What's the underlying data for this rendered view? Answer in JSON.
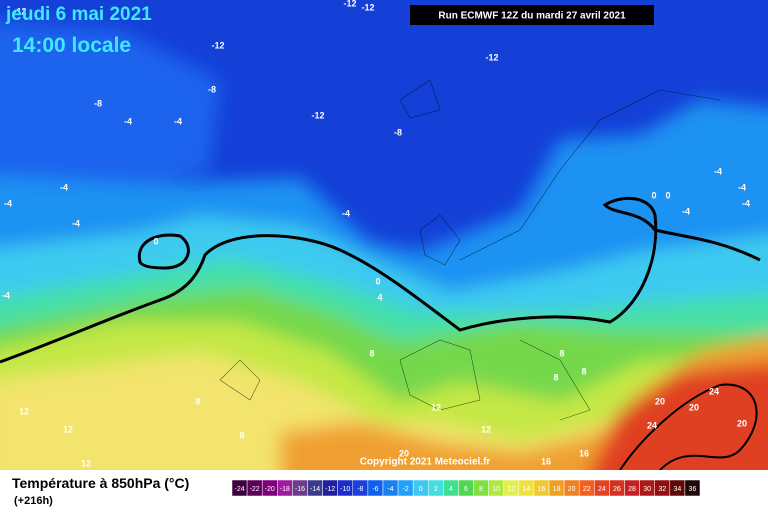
{
  "header": {
    "date": "jeudi 6 mai 2021",
    "time": "14:00 locale",
    "run": "Run ECMWF 12Z du mardi 27 avril 2021"
  },
  "footer": {
    "copyright": "Copyright 2021 Meteociel.fr",
    "title": "Température à 850hPa (°C)",
    "lead": "(+216h)"
  },
  "legend": {
    "ticks": [
      -24,
      -22,
      -20,
      -18,
      -16,
      -14,
      -12,
      -10,
      -8,
      -6,
      -4,
      -2,
      0,
      2,
      4,
      6,
      8,
      10,
      12,
      14,
      16,
      18,
      20,
      22,
      24,
      26,
      28,
      30,
      32,
      34,
      36
    ],
    "colors": [
      "#3c003c",
      "#5c005c",
      "#7c007c",
      "#9c1c9c",
      "#6c3c8c",
      "#3c3c8c",
      "#2020a0",
      "#1c2cc8",
      "#1a40e0",
      "#1060f0",
      "#1a80f0",
      "#20a0f8",
      "#40c8f0",
      "#40e0e0",
      "#40e090",
      "#50d850",
      "#80e040",
      "#b0e840",
      "#e0f050",
      "#f0e040",
      "#f0c830",
      "#f0a020",
      "#f08020",
      "#f06020",
      "#e84020",
      "#d83020",
      "#c82020",
      "#b01818",
      "#901010",
      "#600808",
      "#200808"
    ]
  },
  "map": {
    "contour_labels": [
      "-12",
      "-12",
      "-12",
      "-12",
      "-12",
      "-12",
      "-8",
      "-8",
      "-8",
      "-4",
      "-4",
      "-4",
      "-4",
      "-4",
      "-4",
      "-4",
      "-4",
      "-4",
      "-4",
      "-4",
      "0",
      "0",
      "0",
      "0",
      "4",
      "8",
      "8",
      "8",
      "8",
      "8",
      "8",
      "12",
      "12",
      "12",
      "12",
      "12",
      "16",
      "16",
      "20",
      "20",
      "20",
      "20",
      "24",
      "24"
    ]
  }
}
